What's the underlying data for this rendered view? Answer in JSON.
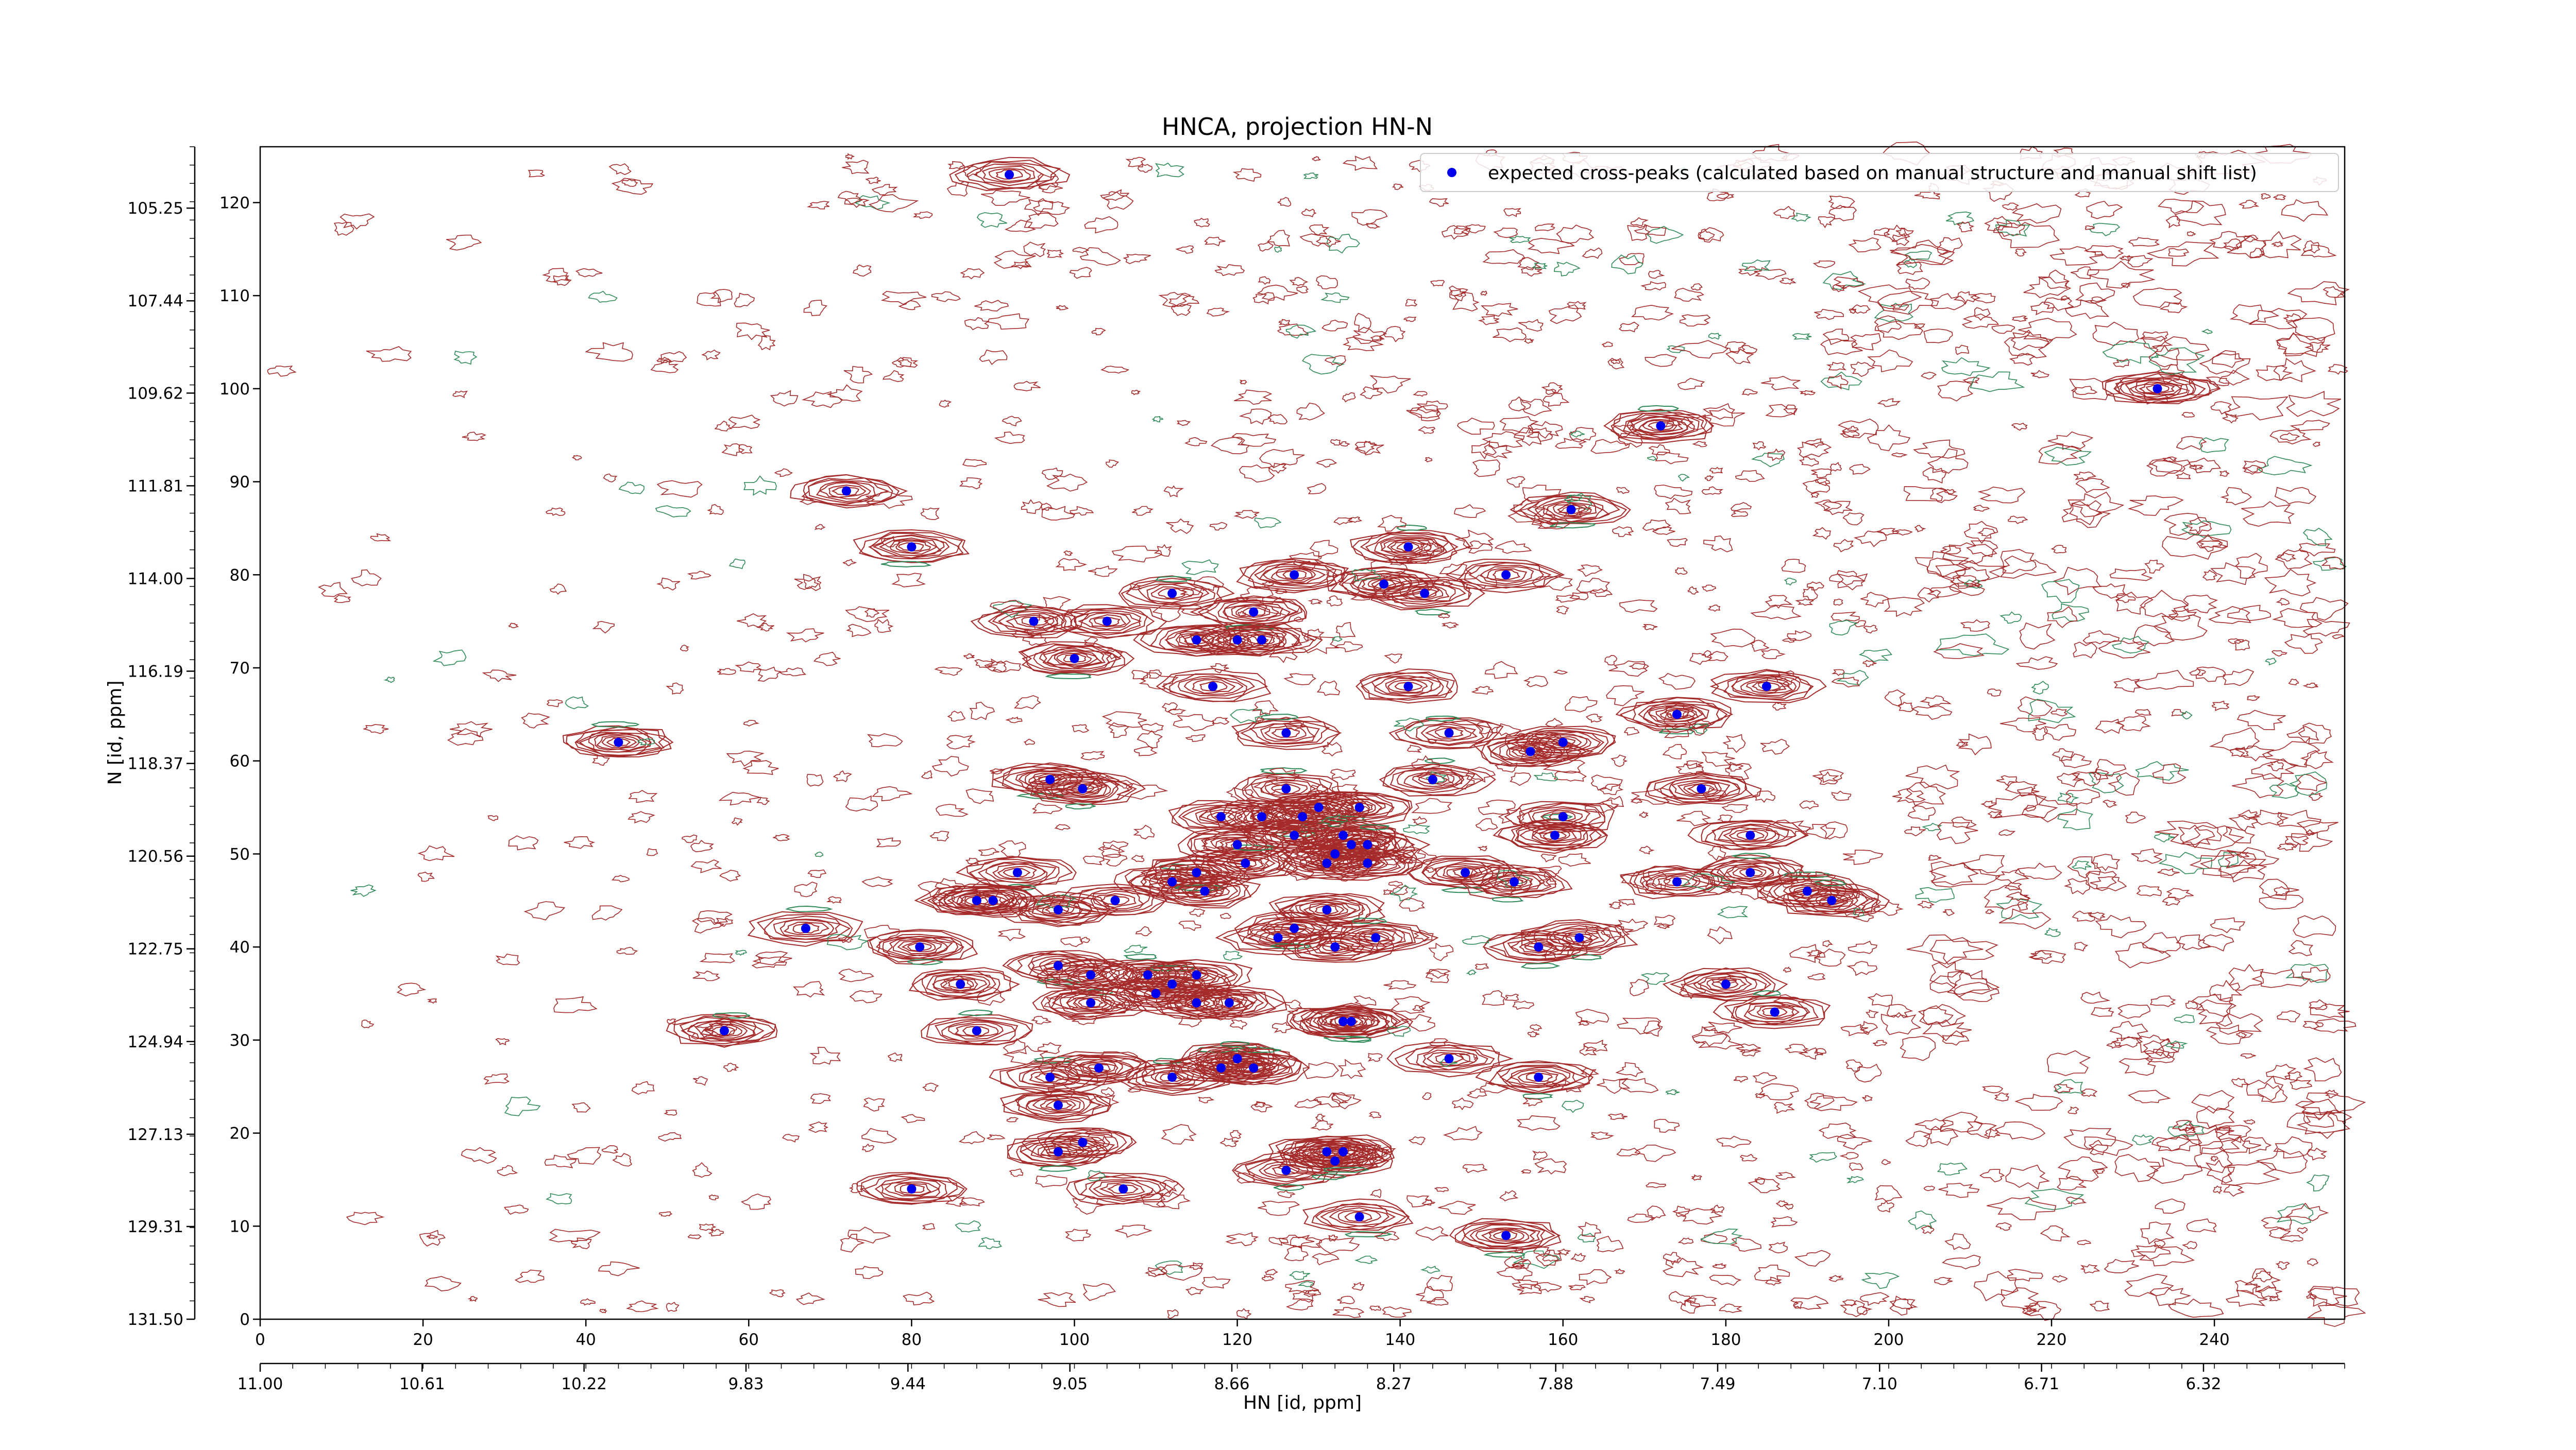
{
  "chart_data": {
    "type": "scatter",
    "title": "HNCA, projection HN-N",
    "xlabel": "HN [id, ppm]",
    "ylabel": "N [id, ppm]",
    "x_index_range": [
      0,
      256
    ],
    "y_index_range": [
      0,
      126
    ],
    "x_index_ticks": [
      0,
      20,
      40,
      60,
      80,
      100,
      120,
      140,
      160,
      180,
      200,
      220,
      240
    ],
    "y_index_ticks": [
      0,
      10,
      20,
      30,
      40,
      50,
      60,
      70,
      80,
      90,
      100,
      110,
      120
    ],
    "x_ppm_range": [
      11.0,
      5.98
    ],
    "x_ppm_ticks": [
      "11.00",
      "10.61",
      "10.22",
      "9.83",
      "9.44",
      "9.05",
      "8.66",
      "8.27",
      "7.88",
      "7.49",
      "7.10",
      "6.71",
      "6.32"
    ],
    "y_ppm_range": [
      131.5,
      103.8
    ],
    "y_ppm_ticks": [
      "131.50",
      "129.31",
      "127.13",
      "124.94",
      "122.75",
      "120.56",
      "118.37",
      "116.19",
      "114.00",
      "111.81",
      "109.62",
      "107.44",
      "105.25"
    ],
    "legend": {
      "position": "top-right",
      "entries": [
        "expected cross-peaks (calculated based on manual structure and manual shift list)"
      ]
    },
    "colors": {
      "peaks": "#0000ee",
      "contour_positive": "#a52a2a",
      "contour_negative": "#2e8b57"
    },
    "series": [
      {
        "name": "expected cross-peaks (calculated based on manual structure and manual shift list)",
        "points": [
          [
            92,
            123
          ],
          [
            233,
            100
          ],
          [
            72,
            89
          ],
          [
            80,
            83
          ],
          [
            141,
            83
          ],
          [
            161,
            87
          ],
          [
            172,
            96
          ],
          [
            95,
            75
          ],
          [
            104,
            75
          ],
          [
            112,
            78
          ],
          [
            115,
            73
          ],
          [
            117,
            68
          ],
          [
            120,
            73
          ],
          [
            122,
            76
          ],
          [
            123,
            73
          ],
          [
            127,
            80
          ],
          [
            138,
            79
          ],
          [
            143,
            78
          ],
          [
            153,
            80
          ],
          [
            100,
            71
          ],
          [
            126,
            63
          ],
          [
            126,
            57
          ],
          [
            141,
            68
          ],
          [
            146,
            63
          ],
          [
            156,
            61
          ],
          [
            160,
            62
          ],
          [
            174,
            65
          ],
          [
            185,
            68
          ],
          [
            44,
            62
          ],
          [
            97,
            58
          ],
          [
            101,
            57
          ],
          [
            144,
            58
          ],
          [
            118,
            54
          ],
          [
            123,
            54
          ],
          [
            128,
            54
          ],
          [
            130,
            55
          ],
          [
            133,
            52
          ],
          [
            134,
            51
          ],
          [
            135,
            55
          ],
          [
            136,
            51
          ],
          [
            159,
            52
          ],
          [
            160,
            54
          ],
          [
            177,
            57
          ],
          [
            183,
            52
          ],
          [
            93,
            48
          ],
          [
            88,
            45
          ],
          [
            90,
            45
          ],
          [
            98,
            44
          ],
          [
            105,
            45
          ],
          [
            112,
            47
          ],
          [
            115,
            48
          ],
          [
            116,
            46
          ],
          [
            120,
            51
          ],
          [
            121,
            49
          ],
          [
            127,
            52
          ],
          [
            131,
            49
          ],
          [
            132,
            50
          ],
          [
            136,
            49
          ],
          [
            148,
            48
          ],
          [
            154,
            47
          ],
          [
            174,
            47
          ],
          [
            183,
            48
          ],
          [
            190,
            46
          ],
          [
            193,
            45
          ],
          [
            67,
            42
          ],
          [
            81,
            40
          ],
          [
            98,
            38
          ],
          [
            102,
            37
          ],
          [
            109,
            37
          ],
          [
            112,
            36
          ],
          [
            115,
            37
          ],
          [
            125,
            41
          ],
          [
            127,
            42
          ],
          [
            131,
            44
          ],
          [
            132,
            40
          ],
          [
            137,
            41
          ],
          [
            86,
            36
          ],
          [
            102,
            34
          ],
          [
            110,
            35
          ],
          [
            115,
            34
          ],
          [
            119,
            34
          ],
          [
            133,
            32
          ],
          [
            162,
            41
          ],
          [
            180,
            36
          ],
          [
            57,
            31
          ],
          [
            88,
            31
          ],
          [
            97,
            26
          ],
          [
            98,
            23
          ],
          [
            103,
            27
          ],
          [
            112,
            26
          ],
          [
            118,
            27
          ],
          [
            120,
            28
          ],
          [
            122,
            27
          ],
          [
            134,
            32
          ],
          [
            146,
            28
          ],
          [
            157,
            26
          ],
          [
            98,
            18
          ],
          [
            101,
            19
          ],
          [
            126,
            16
          ],
          [
            131,
            18
          ],
          [
            132,
            17
          ],
          [
            133,
            18
          ],
          [
            80,
            14
          ],
          [
            106,
            14
          ],
          [
            135,
            11
          ],
          [
            153,
            9
          ],
          [
            157,
            40
          ],
          [
            186,
            33
          ]
        ]
      }
    ]
  }
}
